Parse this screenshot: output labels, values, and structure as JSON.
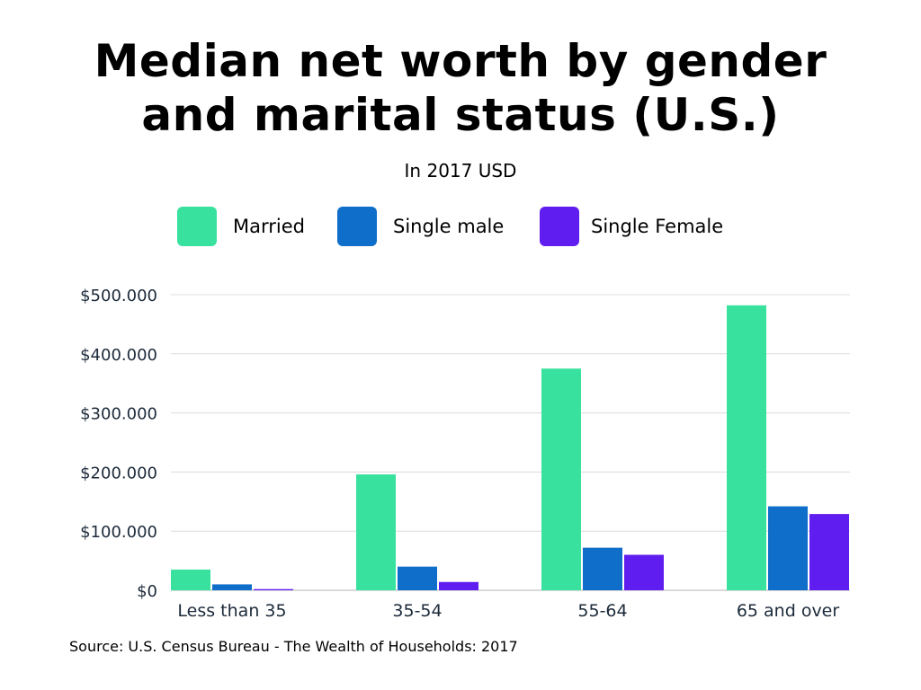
{
  "chart_data": {
    "type": "bar",
    "title": "Median net worth by gender\nand marital status (U.S.)",
    "subtitle": "In 2017 USD",
    "categories": [
      "Less than 35",
      "35-54",
      "55-64",
      "65 and over"
    ],
    "series": [
      {
        "name": "Married",
        "color": "#38e29e",
        "values": [
          35000,
          196000,
          375000,
          482000
        ]
      },
      {
        "name": "Single male",
        "color": "#0f6ec9",
        "values": [
          10000,
          40000,
          72000,
          142000
        ]
      },
      {
        "name": "Single Female",
        "color": "#601def",
        "values": [
          2000,
          14000,
          60000,
          129000
        ]
      }
    ],
    "ylim": [
      0,
      500000
    ],
    "yticks": [
      0,
      100000,
      200000,
      300000,
      400000,
      500000
    ],
    "ytick_labels": [
      "$0",
      "$100.000",
      "$200.000",
      "$300.000",
      "$400.000",
      "$500.000"
    ],
    "grid": true,
    "legend": "top-center",
    "source": "Source: U.S. Census Bureau - The Wealth of Households: 2017"
  }
}
